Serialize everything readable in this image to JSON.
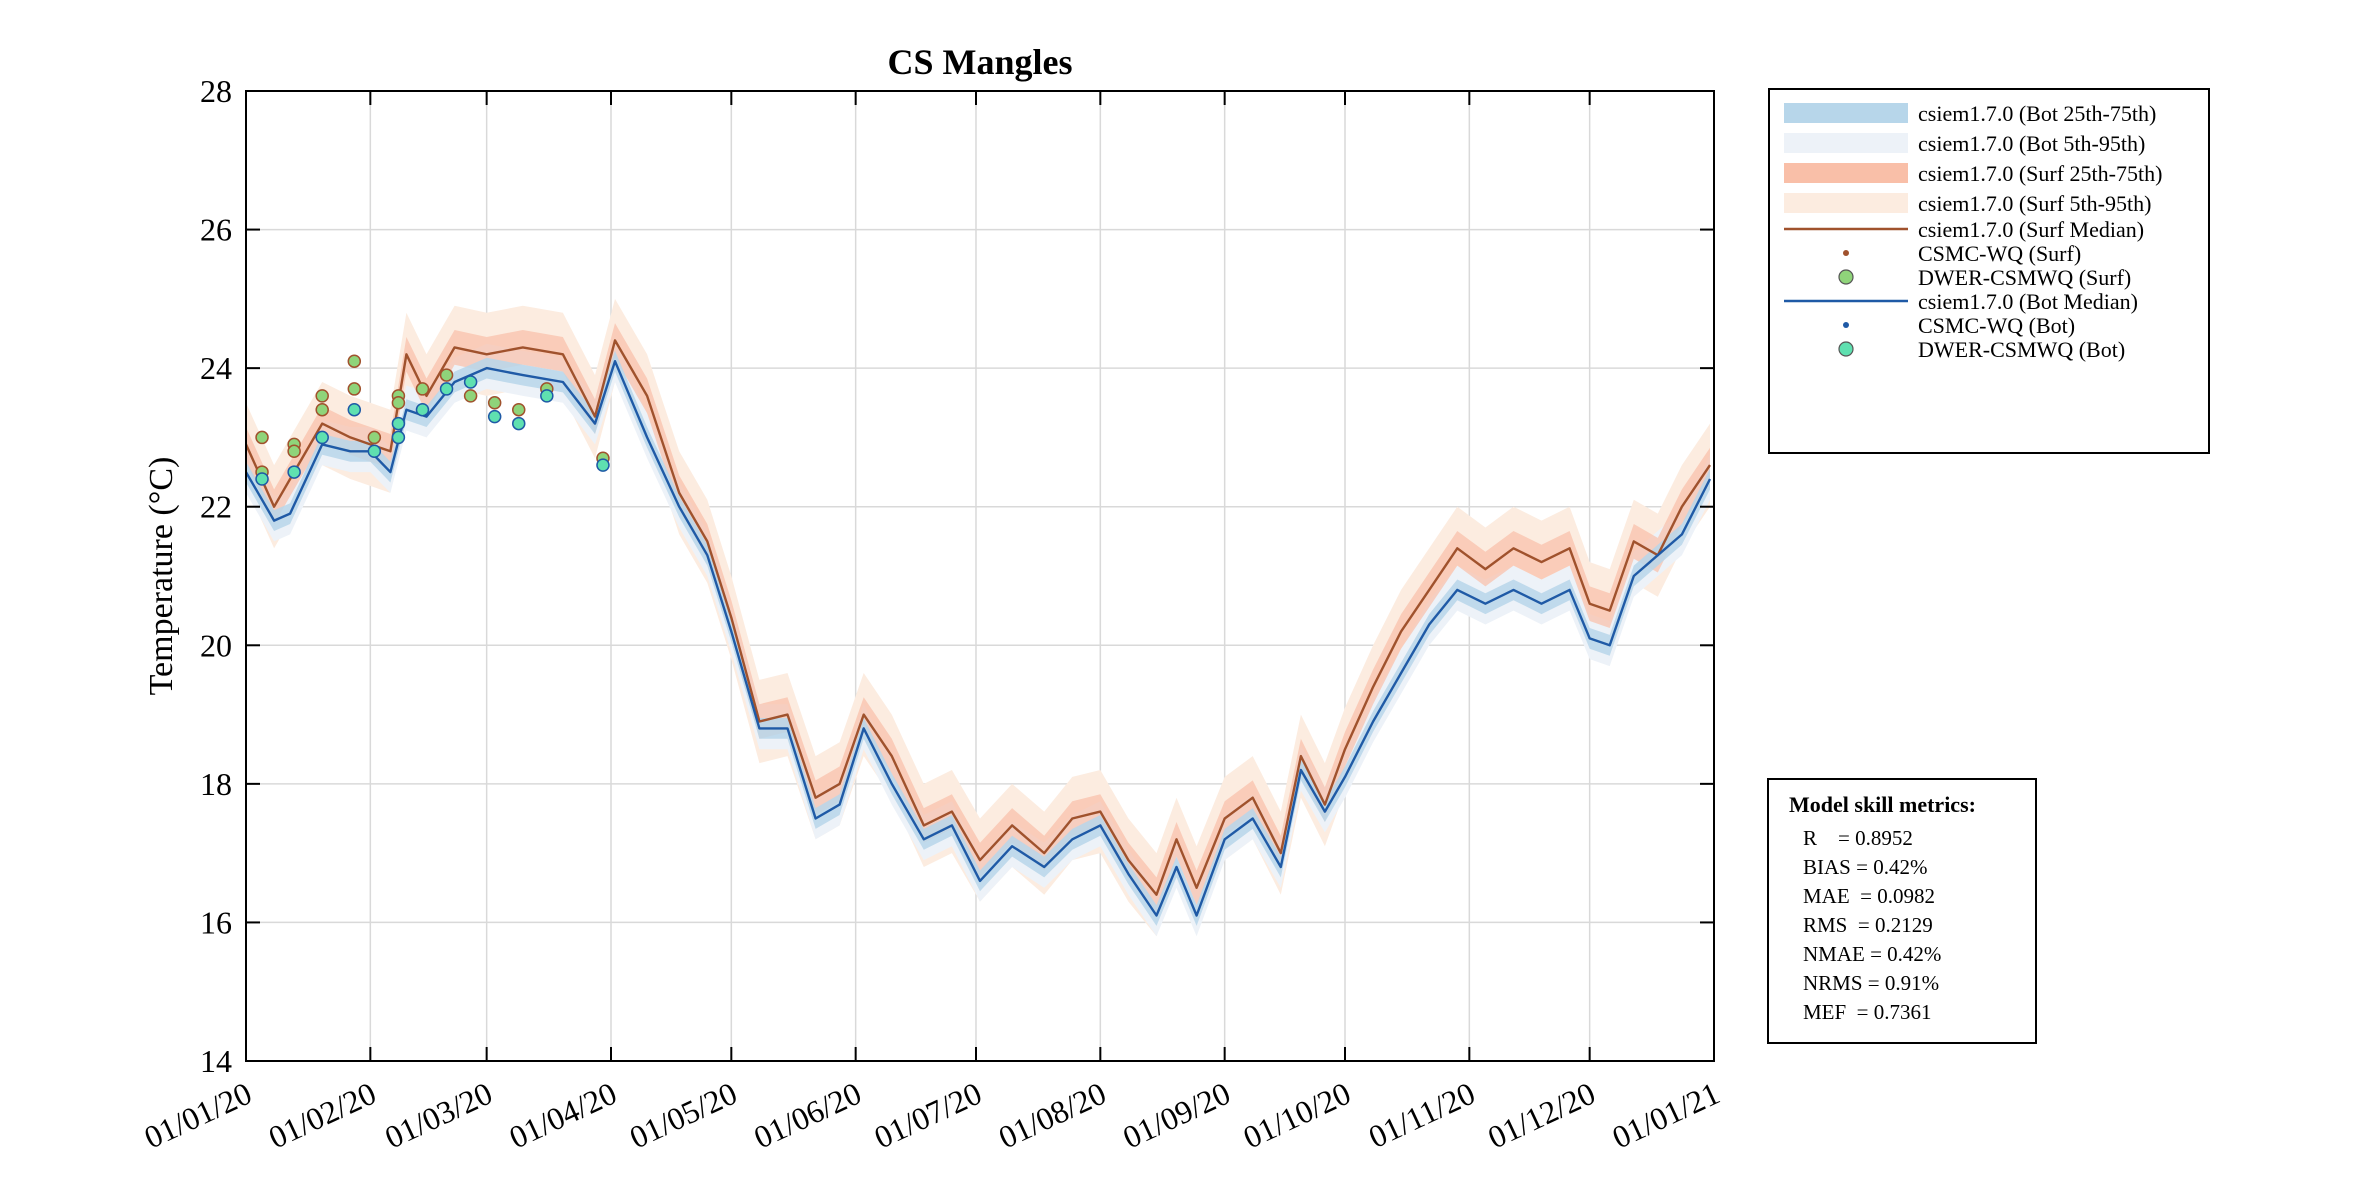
{
  "chart_data": {
    "type": "line",
    "title": "CS Mangles",
    "xlabel": "",
    "ylabel": "Temperature (°C)",
    "ylim": [
      14,
      28
    ],
    "yticks": [
      14,
      16,
      18,
      20,
      22,
      24,
      26,
      28
    ],
    "xlim": [
      "2020-01-01",
      "2021-01-01"
    ],
    "xtick_labels": [
      "01/01/20",
      "01/02/20",
      "01/03/20",
      "01/04/20",
      "01/05/20",
      "01/06/20",
      "01/07/20",
      "01/08/20",
      "01/09/20",
      "01/10/20",
      "01/11/20",
      "01/12/20",
      "01/01/21"
    ],
    "grid": true,
    "legend_placement": "outside-right-top",
    "series": [
      {
        "name": "csiem1.7.0 (Surf Median)",
        "color": "#a0522d",
        "x": [
          "2020-01-01",
          "2020-01-08",
          "2020-01-12",
          "2020-01-20",
          "2020-01-27",
          "2020-02-01",
          "2020-02-06",
          "2020-02-10",
          "2020-02-15",
          "2020-02-22",
          "2020-03-01",
          "2020-03-10",
          "2020-03-20",
          "2020-03-28",
          "2020-04-02",
          "2020-04-10",
          "2020-04-18",
          "2020-04-25",
          "2020-05-01",
          "2020-05-08",
          "2020-05-15",
          "2020-05-22",
          "2020-05-28",
          "2020-06-03",
          "2020-06-10",
          "2020-06-18",
          "2020-06-25",
          "2020-07-02",
          "2020-07-10",
          "2020-07-18",
          "2020-07-25",
          "2020-08-01",
          "2020-08-08",
          "2020-08-15",
          "2020-08-20",
          "2020-08-25",
          "2020-09-01",
          "2020-09-08",
          "2020-09-15",
          "2020-09-20",
          "2020-09-26",
          "2020-10-01",
          "2020-10-08",
          "2020-10-15",
          "2020-10-22",
          "2020-10-29",
          "2020-11-05",
          "2020-11-12",
          "2020-11-19",
          "2020-11-26",
          "2020-12-01",
          "2020-12-06",
          "2020-12-12",
          "2020-12-18",
          "2020-12-24",
          "2020-12-31"
        ],
        "y": [
          22.9,
          22.0,
          22.4,
          23.2,
          23.0,
          22.9,
          22.8,
          24.2,
          23.6,
          24.3,
          24.2,
          24.3,
          24.2,
          23.3,
          24.4,
          23.6,
          22.2,
          21.5,
          20.4,
          18.9,
          19.0,
          17.8,
          18.0,
          19.0,
          18.4,
          17.4,
          17.6,
          16.9,
          17.4,
          17.0,
          17.5,
          17.6,
          16.9,
          16.4,
          17.2,
          16.5,
          17.5,
          17.8,
          17.0,
          18.4,
          17.7,
          18.5,
          19.4,
          20.2,
          20.8,
          21.4,
          21.1,
          21.4,
          21.2,
          21.4,
          20.6,
          20.5,
          21.5,
          21.3,
          22.0,
          22.6
        ]
      },
      {
        "name": "csiem1.7.0 (Bot Median)",
        "color": "#1f5aa6",
        "x": [
          "2020-01-01",
          "2020-01-08",
          "2020-01-12",
          "2020-01-20",
          "2020-01-27",
          "2020-02-01",
          "2020-02-06",
          "2020-02-10",
          "2020-02-15",
          "2020-02-22",
          "2020-03-01",
          "2020-03-10",
          "2020-03-20",
          "2020-03-28",
          "2020-04-02",
          "2020-04-10",
          "2020-04-18",
          "2020-04-25",
          "2020-05-01",
          "2020-05-08",
          "2020-05-15",
          "2020-05-22",
          "2020-05-28",
          "2020-06-03",
          "2020-06-10",
          "2020-06-18",
          "2020-06-25",
          "2020-07-02",
          "2020-07-10",
          "2020-07-18",
          "2020-07-25",
          "2020-08-01",
          "2020-08-08",
          "2020-08-15",
          "2020-08-20",
          "2020-08-25",
          "2020-09-01",
          "2020-09-08",
          "2020-09-15",
          "2020-09-20",
          "2020-09-26",
          "2020-10-01",
          "2020-10-08",
          "2020-10-15",
          "2020-10-22",
          "2020-10-29",
          "2020-11-05",
          "2020-11-12",
          "2020-11-19",
          "2020-11-26",
          "2020-12-01",
          "2020-12-06",
          "2020-12-12",
          "2020-12-18",
          "2020-12-24",
          "2020-12-31"
        ],
        "y": [
          22.5,
          21.8,
          21.9,
          22.9,
          22.8,
          22.8,
          22.5,
          23.4,
          23.3,
          23.8,
          24.0,
          23.9,
          23.8,
          23.2,
          24.1,
          23.0,
          22.0,
          21.3,
          20.2,
          18.8,
          18.8,
          17.5,
          17.7,
          18.8,
          18.0,
          17.2,
          17.4,
          16.6,
          17.1,
          16.8,
          17.2,
          17.4,
          16.7,
          16.1,
          16.8,
          16.1,
          17.2,
          17.5,
          16.8,
          18.2,
          17.6,
          18.1,
          18.9,
          19.6,
          20.3,
          20.8,
          20.6,
          20.8,
          20.6,
          20.8,
          20.1,
          20.0,
          21.0,
          21.3,
          21.6,
          22.4
        ]
      },
      {
        "name": "DWER-CSMWQ (Surf)",
        "color": "#8fd47a",
        "x": [
          "2020-01-05",
          "2020-01-05",
          "2020-01-13",
          "2020-01-13",
          "2020-01-20",
          "2020-01-20",
          "2020-01-28",
          "2020-01-28",
          "2020-02-02",
          "2020-02-08",
          "2020-02-08",
          "2020-02-14",
          "2020-02-20",
          "2020-02-26",
          "2020-03-03",
          "2020-03-09",
          "2020-03-16",
          "2020-03-30"
        ],
        "y": [
          23.0,
          22.5,
          22.9,
          22.8,
          23.6,
          23.4,
          24.1,
          23.7,
          23.0,
          23.6,
          23.5,
          23.7,
          23.9,
          23.6,
          23.5,
          23.4,
          23.7,
          22.7
        ]
      },
      {
        "name": "DWER-CSMWQ (Bot)",
        "color": "#5fe0b0",
        "x": [
          "2020-01-05",
          "2020-01-13",
          "2020-01-20",
          "2020-01-28",
          "2020-02-02",
          "2020-02-08",
          "2020-02-08",
          "2020-02-14",
          "2020-02-20",
          "2020-02-26",
          "2020-03-03",
          "2020-03-09",
          "2020-03-16",
          "2020-03-30"
        ],
        "y": [
          22.4,
          22.5,
          23.0,
          23.4,
          22.8,
          23.0,
          23.2,
          23.4,
          23.7,
          23.8,
          23.3,
          23.2,
          23.6,
          22.6
        ]
      }
    ],
    "legend": [
      {
        "label": "csiem1.7.0 (Bot 25th-75th)",
        "type": "band",
        "color": "#b7d6ea"
      },
      {
        "label": "csiem1.7.0 (Bot 5th-95th)",
        "type": "band",
        "color": "#edf2f8"
      },
      {
        "label": "csiem1.7.0 (Surf 25th-75th)",
        "type": "band",
        "color": "#f9bfa8"
      },
      {
        "label": "csiem1.7.0 (Surf 5th-95th)",
        "type": "band",
        "color": "#fcece0"
      },
      {
        "label": "csiem1.7.0 (Surf Median)",
        "type": "line",
        "color": "#a0522d"
      },
      {
        "label": "CSMC-WQ (Surf)",
        "type": "dot",
        "color": "#a0522d"
      },
      {
        "label": "DWER-CSMWQ (Surf)",
        "type": "circle",
        "color": "#8fd47a"
      },
      {
        "label": "csiem1.7.0 (Bot Median)",
        "type": "line",
        "color": "#1f5aa6"
      },
      {
        "label": "CSMC-WQ (Bot)",
        "type": "dot",
        "color": "#1f5aa6"
      },
      {
        "label": "DWER-CSMWQ (Bot)",
        "type": "circle",
        "color": "#5fe0b0"
      }
    ],
    "metrics": {
      "title": "Model skill metrics:",
      "lines": [
        "R    = 0.8952",
        "BIAS = 0.42%",
        "MAE  = 0.0982",
        "RMS  = 0.2129",
        "NMAE = 0.42%",
        "NRMS = 0.91%",
        "MEF  = 0.7361"
      ]
    }
  }
}
